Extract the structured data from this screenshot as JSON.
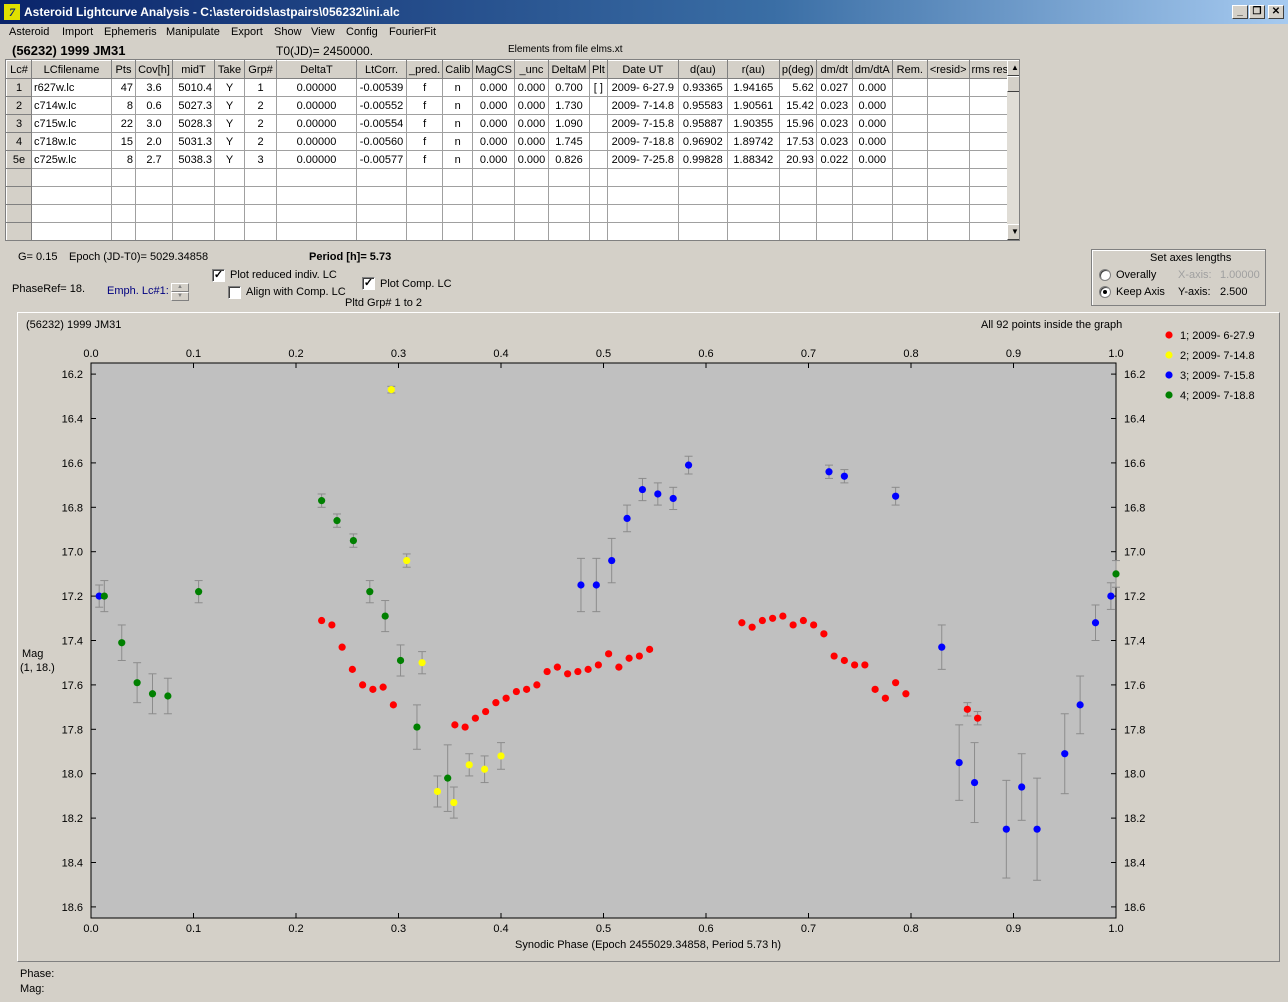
{
  "window": {
    "title": "Asteroid Lightcurve Analysis - C:\\asteroids\\astpairs\\056232\\ini.alc",
    "app_icon_glyph": "7",
    "min_glyph": "_",
    "restore_glyph": "❐",
    "close_glyph": "✕"
  },
  "menu": [
    "Asteroid",
    "Import",
    "Ephemeris",
    "Manipulate",
    "Export",
    "Show",
    "View",
    "Config",
    "FourierFit"
  ],
  "header": {
    "object_name": "(56232) 1999 JM31",
    "t0": "T0(JD)= 2450000.",
    "elements": "Elements from file elms.xt"
  },
  "table": {
    "columns": [
      "Lc#",
      "LCfilename",
      "Pts",
      "Cov[h]",
      "midT",
      "Take",
      "Grp#",
      "DeltaT",
      "LtCorr.",
      "_pred.",
      "Calib",
      "MagCS",
      "_unc",
      "DeltaM",
      "Plt",
      "Date UT",
      "d(au)",
      "r(au)",
      "p(deg)",
      "dm/dt",
      "dm/dtA",
      "Rem.",
      "<resid>",
      "rms res"
    ],
    "rows": [
      [
        "1",
        "r627w.lc",
        "47",
        "3.6",
        "5010.4",
        "Y",
        "1",
        "0.00000",
        "-0.00539",
        "f",
        "n",
        "0.000",
        "0.000",
        "0.700",
        "[ ]",
        "2009- 6-27.9",
        "0.93365",
        "1.94165",
        "5.62",
        "0.027",
        "0.000",
        "",
        "",
        ""
      ],
      [
        "2",
        "c714w.lc",
        "8",
        "0.6",
        "5027.3",
        "Y",
        "2",
        "0.00000",
        "-0.00552",
        "f",
        "n",
        "0.000",
        "0.000",
        "1.730",
        "",
        "2009- 7-14.8",
        "0.95583",
        "1.90561",
        "15.42",
        "0.023",
        "0.000",
        "",
        "",
        ""
      ],
      [
        "3",
        "c715w.lc",
        "22",
        "3.0",
        "5028.3",
        "Y",
        "2",
        "0.00000",
        "-0.00554",
        "f",
        "n",
        "0.000",
        "0.000",
        "1.090",
        "",
        "2009- 7-15.8",
        "0.95887",
        "1.90355",
        "15.96",
        "0.023",
        "0.000",
        "",
        "",
        ""
      ],
      [
        "4",
        "c718w.lc",
        "15",
        "2.0",
        "5031.3",
        "Y",
        "2",
        "0.00000",
        "-0.00560",
        "f",
        "n",
        "0.000",
        "0.000",
        "1.745",
        "",
        "2009- 7-18.8",
        "0.96902",
        "1.89742",
        "17.53",
        "0.023",
        "0.000",
        "",
        "",
        ""
      ],
      [
        "5e",
        "c725w.lc",
        "8",
        "2.7",
        "5038.3",
        "Y",
        "3",
        "0.00000",
        "-0.00577",
        "f",
        "n",
        "0.000",
        "0.000",
        "0.826",
        "",
        "2009- 7-25.8",
        "0.99828",
        "1.88342",
        "20.93",
        "0.022",
        "0.000",
        "",
        "",
        ""
      ]
    ],
    "empty_rows": 4,
    "scroll_up_glyph": "▲",
    "scroll_down_glyph": "▼"
  },
  "controls": {
    "g_value": "G= 0.15",
    "epoch": "Epoch (JD-T0)= 5029.34858",
    "period": "Period [h]= 5.73",
    "phase_ref": "PhaseRef= 18.",
    "emph_lc": "Emph. Lc#1:",
    "plot_reduced": {
      "label": "Plot reduced indiv. LC",
      "checked": true
    },
    "align_comp": {
      "label": "Align with Comp. LC",
      "checked": false
    },
    "plot_comp": {
      "label": "Plot Comp. LC",
      "checked": true
    },
    "check_glyph": "✓",
    "plotted_groups": "Pltd Grp#  1    to    2"
  },
  "axes_lengths": {
    "title": "Set axes lengths",
    "overally": {
      "label": "Overally",
      "selected": false
    },
    "keep_axis": {
      "label": "Keep Axis",
      "selected": true
    },
    "x_axis_label": "X-axis:",
    "x_axis_value": "1.00000",
    "y_axis_label": "Y-axis:",
    "y_axis_value": "2.500"
  },
  "graph": {
    "title": "(56232) 1999 JM31",
    "points_note": "All 92 points inside the graph",
    "ylabel_line1": "Mag",
    "ylabel_line2": "(1, 18.)",
    "xlabel": "Synodic Phase (Epoch 2455029.34858, Period 5.73 h)"
  },
  "chart_data": {
    "type": "scatter",
    "title": "(56232) 1999 JM31",
    "xlabel": "Synodic Phase (Epoch 2455029.34858, Period 5.73 h)",
    "ylabel": "Mag (1, 18.)",
    "xlim": [
      0.0,
      1.0
    ],
    "ylim": [
      18.65,
      16.15
    ],
    "y_inverted": true,
    "x_ticks": [
      "0.0",
      "0.1",
      "0.2",
      "0.3",
      "0.4",
      "0.5",
      "0.6",
      "0.7",
      "0.8",
      "0.9",
      "1.0"
    ],
    "x_tick_values": [
      0.0,
      0.1,
      0.2,
      0.3,
      0.4,
      0.5,
      0.6,
      0.7,
      0.8,
      0.9,
      1.0
    ],
    "y_ticks": [
      "16.2",
      "16.4",
      "16.6",
      "16.8",
      "17.0",
      "17.2",
      "17.4",
      "17.6",
      "17.8",
      "18.0",
      "18.2",
      "18.4",
      "18.6"
    ],
    "y_tick_values": [
      16.2,
      16.4,
      16.6,
      16.8,
      17.0,
      17.2,
      17.4,
      17.6,
      17.8,
      18.0,
      18.2,
      18.4,
      18.6
    ],
    "grid": false,
    "legend_position": "right",
    "series": [
      {
        "name": "1; 2009- 6-27.9",
        "color": "#ff0000",
        "points": [
          [
            0.225,
            17.31
          ],
          [
            0.235,
            17.33
          ],
          [
            0.245,
            17.43
          ],
          [
            0.255,
            17.53
          ],
          [
            0.265,
            17.6
          ],
          [
            0.275,
            17.62
          ],
          [
            0.285,
            17.61
          ],
          [
            0.295,
            17.69
          ],
          [
            0.355,
            17.78
          ],
          [
            0.365,
            17.79
          ],
          [
            0.375,
            17.75
          ],
          [
            0.385,
            17.72
          ],
          [
            0.395,
            17.68
          ],
          [
            0.405,
            17.66
          ],
          [
            0.415,
            17.63
          ],
          [
            0.425,
            17.62
          ],
          [
            0.435,
            17.6
          ],
          [
            0.445,
            17.54
          ],
          [
            0.455,
            17.52
          ],
          [
            0.465,
            17.55
          ],
          [
            0.475,
            17.54
          ],
          [
            0.485,
            17.53
          ],
          [
            0.495,
            17.51
          ],
          [
            0.505,
            17.46
          ],
          [
            0.515,
            17.52
          ],
          [
            0.525,
            17.48
          ],
          [
            0.535,
            17.47
          ],
          [
            0.545,
            17.44
          ],
          [
            0.635,
            17.32
          ],
          [
            0.645,
            17.34
          ],
          [
            0.655,
            17.31
          ],
          [
            0.665,
            17.3
          ],
          [
            0.675,
            17.29
          ],
          [
            0.685,
            17.33
          ],
          [
            0.695,
            17.31
          ],
          [
            0.705,
            17.33
          ],
          [
            0.715,
            17.37
          ],
          [
            0.725,
            17.47
          ],
          [
            0.735,
            17.49
          ],
          [
            0.745,
            17.51
          ],
          [
            0.755,
            17.51
          ],
          [
            0.765,
            17.62
          ],
          [
            0.775,
            17.66
          ],
          [
            0.785,
            17.59
          ],
          [
            0.795,
            17.64
          ],
          [
            0.855,
            17.71
          ],
          [
            0.865,
            17.75
          ]
        ],
        "errors": [
          0,
          0,
          0,
          0,
          0,
          0,
          0,
          0,
          0,
          0,
          0,
          0,
          0,
          0,
          0,
          0,
          0,
          0,
          0,
          0,
          0,
          0,
          0,
          0,
          0,
          0,
          0,
          0,
          0,
          0,
          0,
          0,
          0,
          0,
          0,
          0,
          0,
          0,
          0,
          0,
          0,
          0,
          0,
          0,
          0,
          0.03,
          0.03
        ]
      },
      {
        "name": "2; 2009- 7-14.8",
        "color": "#ffff00",
        "points": [
          [
            0.293,
            16.27
          ],
          [
            0.308,
            17.04
          ],
          [
            0.323,
            17.5
          ],
          [
            0.338,
            18.08
          ],
          [
            0.354,
            18.13
          ],
          [
            0.369,
            17.96
          ],
          [
            0.384,
            17.98
          ],
          [
            0.4,
            17.92
          ]
        ],
        "errors": [
          0.015,
          0.03,
          0.05,
          0.07,
          0.07,
          0.05,
          0.06,
          0.06
        ]
      },
      {
        "name": "3; 2009- 7-15.8",
        "color": "#0000ff",
        "points": [
          [
            0.008,
            17.2
          ],
          [
            0.478,
            17.15
          ],
          [
            0.493,
            17.15
          ],
          [
            0.508,
            17.04
          ],
          [
            0.523,
            16.85
          ],
          [
            0.538,
            16.72
          ],
          [
            0.553,
            16.74
          ],
          [
            0.568,
            16.76
          ],
          [
            0.583,
            16.61
          ],
          [
            0.72,
            16.64
          ],
          [
            0.735,
            16.66
          ],
          [
            0.785,
            16.75
          ],
          [
            0.83,
            17.43
          ],
          [
            0.847,
            17.95
          ],
          [
            0.862,
            18.04
          ],
          [
            0.893,
            18.25
          ],
          [
            0.908,
            18.06
          ],
          [
            0.923,
            18.25
          ],
          [
            0.95,
            17.91
          ],
          [
            0.965,
            17.69
          ],
          [
            0.98,
            17.32
          ],
          [
            0.995,
            17.2
          ]
        ],
        "errors": [
          0.05,
          0.12,
          0.12,
          0.1,
          0.06,
          0.05,
          0.05,
          0.05,
          0.04,
          0.03,
          0.03,
          0.04,
          0.1,
          0.17,
          0.18,
          0.22,
          0.15,
          0.23,
          0.18,
          0.13,
          0.08,
          0.06
        ]
      },
      {
        "name": "4; 2009- 7-18.8",
        "color": "#008000",
        "points": [
          [
            0.013,
            17.2
          ],
          [
            0.03,
            17.41
          ],
          [
            0.045,
            17.59
          ],
          [
            0.06,
            17.64
          ],
          [
            0.075,
            17.65
          ],
          [
            0.105,
            17.18
          ],
          [
            0.225,
            16.77
          ],
          [
            0.24,
            16.86
          ],
          [
            0.256,
            16.95
          ],
          [
            0.272,
            17.18
          ],
          [
            0.287,
            17.29
          ],
          [
            0.302,
            17.49
          ],
          [
            0.318,
            17.79
          ],
          [
            0.348,
            18.02
          ],
          [
            1.0,
            17.1
          ]
        ],
        "errors": [
          0.07,
          0.08,
          0.09,
          0.09,
          0.08,
          0.05,
          0.03,
          0.03,
          0.03,
          0.05,
          0.07,
          0.07,
          0.1,
          0.15,
          0.06
        ]
      }
    ]
  },
  "status": {
    "phase_label": "Phase:",
    "mag_label": "Mag:"
  }
}
